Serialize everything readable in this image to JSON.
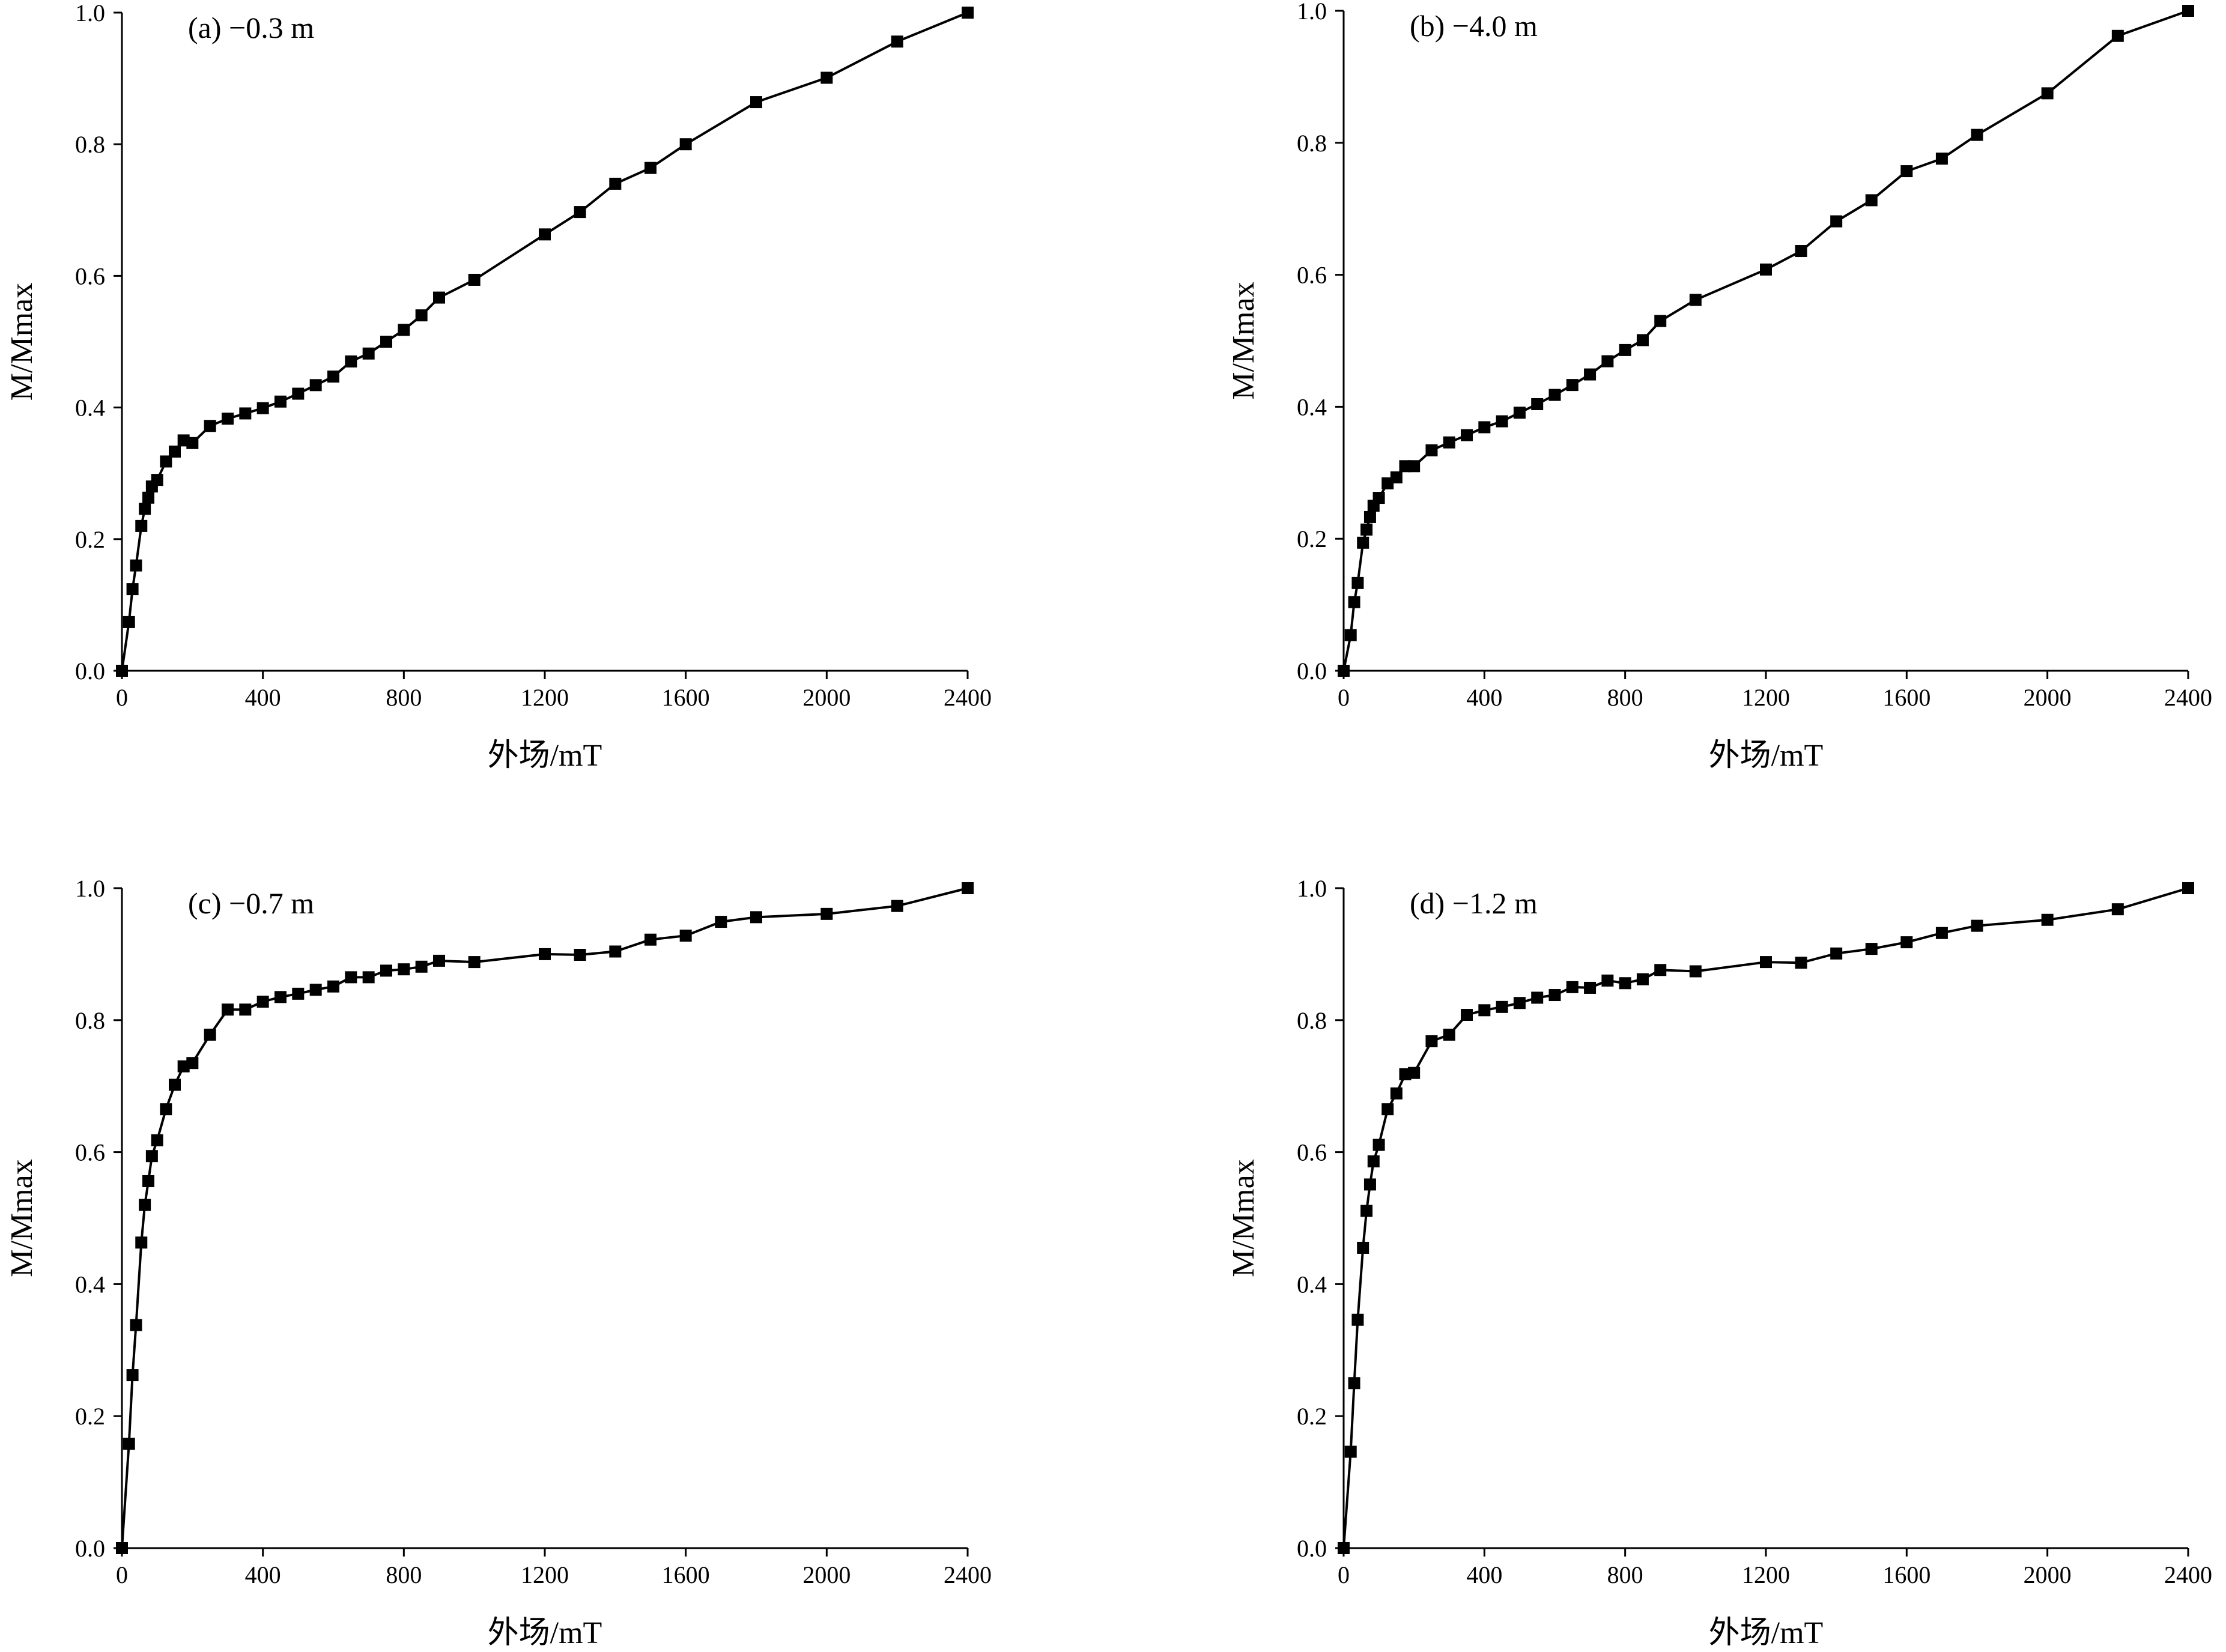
{
  "chart_data": [
    {
      "type": "line",
      "title": "(a) −0.3 m",
      "xlabel": "外场/mT",
      "ylabel": "M/Mmax",
      "xlim": [
        0,
        2400
      ],
      "ylim": [
        0,
        1.0
      ],
      "xticks": [
        "0",
        "400",
        "800",
        "1200",
        "1600",
        "2000",
        "2400"
      ],
      "yticks": [
        "0.0",
        "0.2",
        "0.4",
        "0.6",
        "0.8",
        "1.0"
      ],
      "grid": false,
      "marker": "square",
      "x": [
        0,
        20,
        30,
        40,
        55,
        65,
        75,
        85,
        100,
        125,
        150,
        175,
        200,
        250,
        300,
        350,
        400,
        450,
        500,
        550,
        600,
        650,
        700,
        750,
        800,
        850,
        900,
        1000,
        1200,
        1300,
        1400,
        1500,
        1600,
        1800,
        2000,
        2200,
        2400
      ],
      "y": [
        0.0,
        0.074,
        0.124,
        0.16,
        0.22,
        0.246,
        0.263,
        0.28,
        0.29,
        0.318,
        0.333,
        0.35,
        0.346,
        0.372,
        0.383,
        0.391,
        0.399,
        0.409,
        0.421,
        0.434,
        0.447,
        0.47,
        0.482,
        0.5,
        0.518,
        0.54,
        0.567,
        0.594,
        0.663,
        0.697,
        0.74,
        0.764,
        0.8,
        0.864,
        0.901,
        0.956,
        1.0
      ]
    },
    {
      "type": "line",
      "title": "(b) −4.0 m",
      "xlabel": "外场/mT",
      "ylabel": "M/Mmax",
      "xlim": [
        0,
        2400
      ],
      "ylim": [
        0,
        1.0
      ],
      "xticks": [
        "0",
        "400",
        "800",
        "1200",
        "1600",
        "2000",
        "2400"
      ],
      "yticks": [
        "0.0",
        "0.2",
        "0.4",
        "0.6",
        "0.8",
        "1.0"
      ],
      "grid": false,
      "marker": "square",
      "x": [
        0,
        20,
        30,
        40,
        55,
        65,
        75,
        85,
        100,
        125,
        150,
        175,
        200,
        250,
        300,
        350,
        400,
        450,
        500,
        550,
        600,
        650,
        700,
        750,
        800,
        850,
        900,
        1000,
        1200,
        1300,
        1400,
        1500,
        1600,
        1700,
        1800,
        2000,
        2200,
        2400
      ],
      "y": [
        0.0,
        0.054,
        0.104,
        0.133,
        0.194,
        0.214,
        0.233,
        0.25,
        0.262,
        0.284,
        0.293,
        0.31,
        0.31,
        0.334,
        0.346,
        0.357,
        0.369,
        0.378,
        0.391,
        0.404,
        0.418,
        0.433,
        0.449,
        0.469,
        0.486,
        0.501,
        0.53,
        0.562,
        0.608,
        0.636,
        0.681,
        0.713,
        0.757,
        0.776,
        0.812,
        0.875,
        0.962,
        1.0
      ]
    },
    {
      "type": "line",
      "title": "(c) −0.7 m",
      "xlabel": "外场/mT",
      "ylabel": "M/Mmax",
      "xlim": [
        0,
        2400
      ],
      "ylim": [
        0,
        1.0
      ],
      "xticks": [
        "0",
        "400",
        "800",
        "1200",
        "1600",
        "2000",
        "2400"
      ],
      "yticks": [
        "0.0",
        "0.2",
        "0.4",
        "0.6",
        "0.8",
        "1.0"
      ],
      "grid": false,
      "marker": "square",
      "x": [
        0,
        20,
        30,
        40,
        55,
        65,
        75,
        85,
        100,
        125,
        150,
        175,
        200,
        250,
        300,
        350,
        400,
        450,
        500,
        550,
        600,
        650,
        700,
        750,
        800,
        850,
        900,
        1000,
        1200,
        1300,
        1400,
        1500,
        1600,
        1700,
        1800,
        2000,
        2200,
        2400
      ],
      "y": [
        0.0,
        0.158,
        0.262,
        0.338,
        0.463,
        0.52,
        0.556,
        0.594,
        0.618,
        0.665,
        0.702,
        0.73,
        0.735,
        0.778,
        0.816,
        0.816,
        0.828,
        0.835,
        0.84,
        0.846,
        0.851,
        0.865,
        0.865,
        0.875,
        0.877,
        0.881,
        0.89,
        0.888,
        0.9,
        0.899,
        0.904,
        0.922,
        0.928,
        0.949,
        0.956,
        0.961,
        0.973,
        1.0
      ]
    },
    {
      "type": "line",
      "title": "(d) −1.2 m",
      "xlabel": "外场/mT",
      "ylabel": "M/Mmax",
      "xlim": [
        0,
        2400
      ],
      "ylim": [
        0,
        1.0
      ],
      "xticks": [
        "0",
        "400",
        "800",
        "1200",
        "1600",
        "2000",
        "2400"
      ],
      "yticks": [
        "0.0",
        "0.2",
        "0.4",
        "0.6",
        "0.8",
        "1.0"
      ],
      "grid": false,
      "marker": "square",
      "x": [
        0,
        20,
        30,
        40,
        55,
        65,
        75,
        85,
        100,
        125,
        150,
        175,
        200,
        250,
        300,
        350,
        400,
        450,
        500,
        550,
        600,
        650,
        700,
        750,
        800,
        850,
        900,
        1000,
        1200,
        1300,
        1400,
        1500,
        1600,
        1700,
        1800,
        2000,
        2200,
        2400
      ],
      "y": [
        0.0,
        0.146,
        0.25,
        0.346,
        0.455,
        0.511,
        0.551,
        0.586,
        0.611,
        0.665,
        0.689,
        0.718,
        0.72,
        0.768,
        0.778,
        0.808,
        0.815,
        0.82,
        0.826,
        0.834,
        0.838,
        0.85,
        0.849,
        0.86,
        0.856,
        0.862,
        0.876,
        0.874,
        0.888,
        0.887,
        0.901,
        0.908,
        0.918,
        0.932,
        0.943,
        0.952,
        0.968,
        1.0
      ]
    }
  ]
}
